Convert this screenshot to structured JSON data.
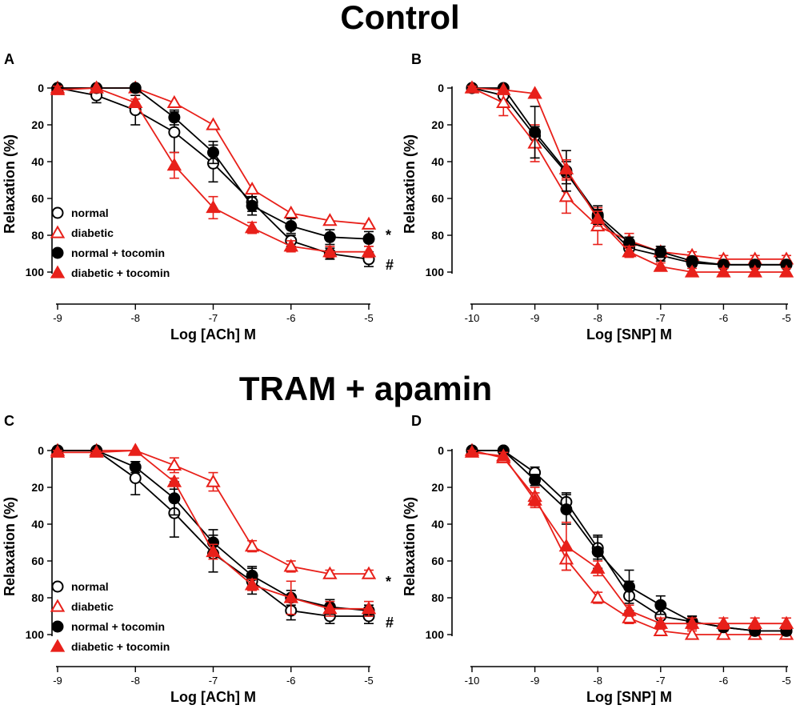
{
  "figure": {
    "section_titles": [
      "Control",
      "TRAM + apamin"
    ]
  },
  "colors": {
    "normal": "#000000",
    "diabetic": "#e8201a",
    "axis": "#000000"
  },
  "chart_data": [
    {
      "panel": "A",
      "type": "line",
      "xlabel": "Log [ACh] M",
      "ylabel": "Relaxation (%)",
      "xlim": [
        -9,
        -5
      ],
      "ylim": [
        0,
        100
      ],
      "y_inverted": true,
      "x_ticks": [
        -9,
        -8,
        -7,
        -6,
        -5
      ],
      "x_tick_labels": [
        "-9",
        "-8",
        "-7",
        "-6",
        "-5"
      ],
      "y_ticks": [
        0,
        20,
        40,
        60,
        80,
        100
      ],
      "y_tick_labels": [
        "0",
        "20",
        "40",
        "60",
        "80",
        "100"
      ],
      "x": [
        -9,
        -8.5,
        -8,
        -7.5,
        -7,
        -6.5,
        -6,
        -5.5,
        -5
      ],
      "legend": "left",
      "series": [
        {
          "name": "normal",
          "marker": "circle-open",
          "color": "#000000",
          "values": [
            0,
            4,
            12,
            24,
            41,
            62,
            83,
            90,
            93
          ],
          "errors": [
            0,
            4,
            8,
            11,
            10,
            5,
            3,
            3,
            4
          ]
        },
        {
          "name": "diabetic",
          "marker": "triangle-open",
          "color": "#e8201a",
          "values": [
            0,
            0,
            0,
            8,
            20,
            55,
            68,
            72,
            74
          ],
          "errors": [
            0,
            0,
            0,
            0,
            0,
            0,
            0,
            0,
            0
          ]
        },
        {
          "name": "normal + tocomin",
          "marker": "circle-filled",
          "color": "#000000",
          "values": [
            0,
            0,
            0,
            16,
            35,
            64,
            75,
            81,
            82
          ],
          "errors": [
            0,
            0,
            0,
            4,
            6,
            5,
            4,
            4,
            4
          ]
        },
        {
          "name": "diabetic + tocomin",
          "marker": "triangle-filled",
          "color": "#e8201a",
          "values": [
            1,
            0,
            8,
            42,
            65,
            76,
            86,
            89,
            89
          ],
          "errors": [
            2,
            0,
            2,
            7,
            6,
            3,
            3,
            3,
            3
          ]
        }
      ],
      "annotations": [
        "*",
        "#"
      ]
    },
    {
      "panel": "B",
      "type": "line",
      "xlabel": "Log [SNP] M",
      "ylabel": "Relaxation (%)",
      "xlim": [
        -10,
        -5
      ],
      "ylim": [
        0,
        100
      ],
      "y_inverted": true,
      "x_ticks": [
        -10,
        -9,
        -8,
        -7,
        -6,
        -5
      ],
      "x_tick_labels": [
        "-10",
        "-9",
        "-8",
        "-7",
        "-6",
        "-5"
      ],
      "y_ticks": [
        0,
        20,
        40,
        60,
        80,
        100
      ],
      "y_tick_labels": [
        "0",
        "20",
        "40",
        "60",
        "80",
        "100"
      ],
      "x": [
        -10,
        -9.5,
        -9,
        -8.5,
        -8,
        -7.5,
        -7,
        -6.5,
        -6,
        -5.5,
        -5
      ],
      "legend": "none",
      "series": [
        {
          "name": "normal",
          "marker": "circle-open",
          "color": "#000000",
          "values": [
            0,
            4,
            26,
            46,
            70,
            87,
            91,
            95,
            96,
            96,
            96
          ],
          "errors": [
            0,
            3,
            5,
            6,
            4,
            3,
            3,
            2,
            2,
            2,
            2
          ]
        },
        {
          "name": "diabetic",
          "marker": "triangle-open",
          "color": "#e8201a",
          "values": [
            0,
            8,
            30,
            59,
            75,
            83,
            89,
            91,
            93,
            93,
            93
          ],
          "errors": [
            1,
            7,
            10,
            9,
            10,
            4,
            3,
            2,
            2,
            2,
            2
          ]
        },
        {
          "name": "normal + tocomin",
          "marker": "circle-filled",
          "color": "#000000",
          "values": [
            0,
            0,
            24,
            45,
            69,
            84,
            89,
            94,
            96,
            96,
            96
          ],
          "errors": [
            0,
            0,
            14,
            11,
            5,
            3,
            3,
            2,
            2,
            2,
            2
          ]
        },
        {
          "name": "diabetic + tocomin",
          "marker": "triangle-filled",
          "color": "#e8201a",
          "values": [
            0,
            1,
            3,
            44,
            71,
            89,
            97,
            100,
            100,
            100,
            100
          ],
          "errors": [
            1,
            0,
            0,
            5,
            4,
            3,
            2,
            2,
            2,
            2,
            2
          ]
        }
      ]
    },
    {
      "panel": "C",
      "type": "line",
      "xlabel": "Log [ACh] M",
      "ylabel": "Relaxation (%)",
      "xlim": [
        -9,
        -5
      ],
      "ylim": [
        0,
        100
      ],
      "y_inverted": true,
      "x_ticks": [
        -9,
        -8,
        -7,
        -6,
        -5
      ],
      "x_tick_labels": [
        "-9",
        "-8",
        "-7",
        "-6",
        "-5"
      ],
      "y_ticks": [
        0,
        20,
        40,
        60,
        80,
        100
      ],
      "y_tick_labels": [
        "0",
        "20",
        "40",
        "60",
        "80",
        "100"
      ],
      "x": [
        -9,
        -8.5,
        -8,
        -7.5,
        -7,
        -6.5,
        -6,
        -5.5,
        -5
      ],
      "legend": "left",
      "series": [
        {
          "name": "normal",
          "marker": "circle-open",
          "color": "#000000",
          "values": [
            0,
            0,
            15,
            34,
            56,
            71,
            87,
            90,
            90
          ],
          "errors": [
            0,
            0,
            9,
            13,
            10,
            7,
            5,
            4,
            4
          ]
        },
        {
          "name": "diabetic",
          "marker": "triangle-open",
          "color": "#e8201a",
          "values": [
            0,
            0,
            0,
            8,
            17,
            52,
            63,
            67,
            67
          ],
          "errors": [
            0,
            0,
            0,
            4,
            5,
            3,
            3,
            2,
            2
          ]
        },
        {
          "name": "normal + tocomin",
          "marker": "circle-filled",
          "color": "#000000",
          "values": [
            0,
            0,
            9,
            26,
            50,
            68,
            80,
            85,
            87
          ],
          "errors": [
            0,
            0,
            3,
            9,
            7,
            5,
            4,
            4,
            3
          ]
        },
        {
          "name": "diabetic + tocomin",
          "marker": "triangle-filled",
          "color": "#e8201a",
          "values": [
            1,
            1,
            0,
            17,
            55,
            73,
            80,
            86,
            86
          ],
          "errors": [
            1,
            1,
            0,
            2,
            4,
            3,
            9,
            4,
            4
          ]
        }
      ],
      "annotations": [
        "*",
        "#"
      ]
    },
    {
      "panel": "D",
      "type": "line",
      "xlabel": "Log [SNP] M",
      "ylabel": "Relaxation (%)",
      "xlim": [
        -10,
        -5
      ],
      "ylim": [
        0,
        100
      ],
      "y_inverted": true,
      "x_ticks": [
        -10,
        -9,
        -8,
        -7,
        -6,
        -5
      ],
      "x_tick_labels": [
        "-10",
        "-9",
        "-8",
        "-7",
        "-6",
        "-5"
      ],
      "y_ticks": [
        0,
        20,
        40,
        60,
        80,
        100
      ],
      "y_tick_labels": [
        "0",
        "20",
        "40",
        "60",
        "80",
        "100"
      ],
      "x": [
        -10,
        -9.5,
        -9,
        -8.5,
        -8,
        -7.5,
        -7,
        -6.5,
        -6,
        -5.5,
        -5
      ],
      "legend": "none",
      "series": [
        {
          "name": "normal",
          "marker": "circle-open",
          "color": "#000000",
          "values": [
            0,
            0,
            12,
            28,
            53,
            79,
            90,
            93,
            96,
            98,
            98
          ],
          "errors": [
            0,
            0,
            3,
            5,
            6,
            8,
            4,
            3,
            2,
            2,
            2
          ]
        },
        {
          "name": "diabetic",
          "marker": "triangle-open",
          "color": "#e8201a",
          "values": [
            0,
            4,
            25,
            59,
            80,
            91,
            98,
            100,
            100,
            100,
            100
          ],
          "errors": [
            1,
            2,
            5,
            6,
            3,
            3,
            2,
            2,
            2,
            2,
            2
          ]
        },
        {
          "name": "normal + tocomin",
          "marker": "circle-filled",
          "color": "#000000",
          "values": [
            0,
            0,
            16,
            32,
            55,
            74,
            84,
            93,
            96,
            98,
            98
          ],
          "errors": [
            0,
            0,
            3,
            8,
            9,
            9,
            5,
            3,
            2,
            2,
            2
          ]
        },
        {
          "name": "diabetic + tocomin",
          "marker": "triangle-filled",
          "color": "#e8201a",
          "values": [
            1,
            3,
            27,
            52,
            64,
            87,
            94,
            94,
            94,
            94,
            94
          ],
          "errors": [
            1,
            2,
            4,
            13,
            4,
            3,
            3,
            3,
            3,
            3,
            3
          ]
        }
      ]
    }
  ]
}
